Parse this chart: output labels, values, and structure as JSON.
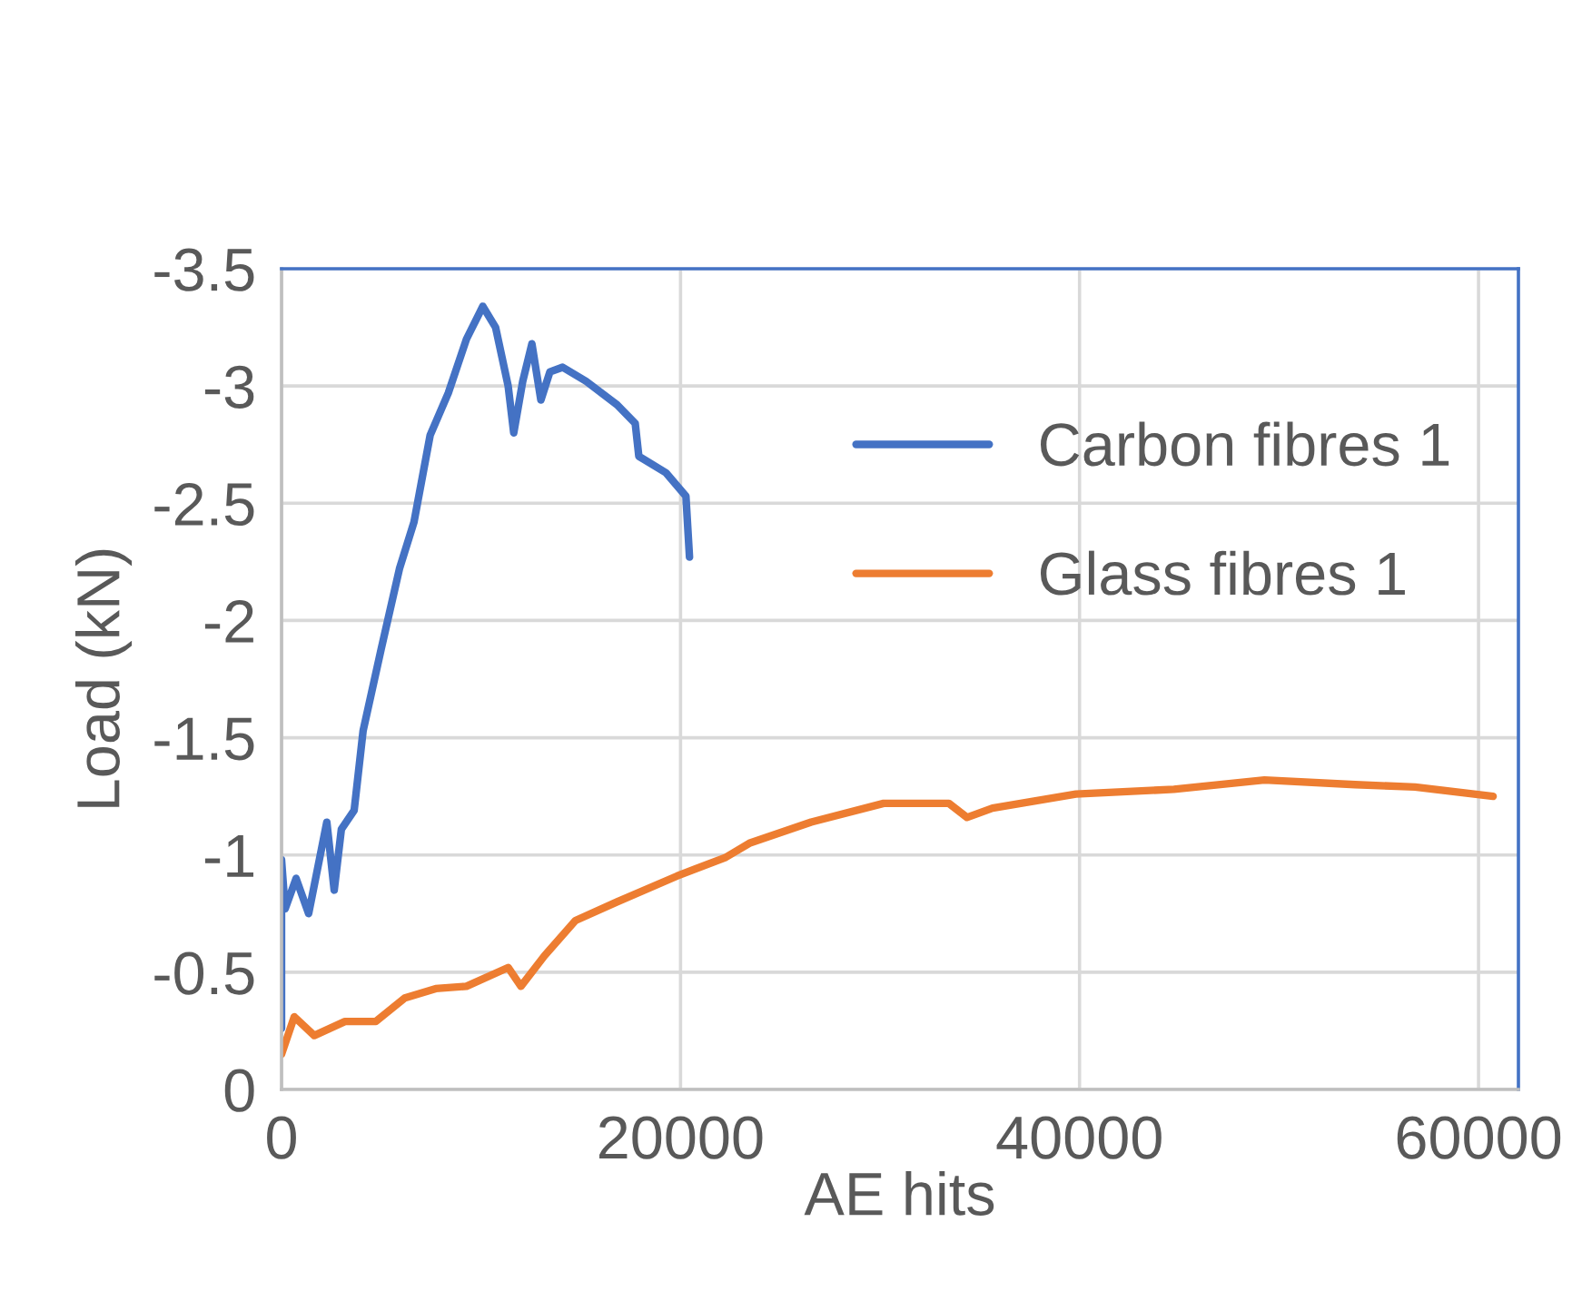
{
  "chart_data": {
    "type": "line",
    "xlabel": "AE hits",
    "ylabel": "Load (kN)",
    "xlim": [
      0,
      62000
    ],
    "xticks": [
      0,
      20000,
      40000,
      60000
    ],
    "ylim": [
      0,
      -3.5
    ],
    "yticks": [
      0,
      -0.5,
      -1,
      -1.5,
      -2,
      -2.5,
      -3,
      -3.5
    ],
    "grid": true,
    "legend": "top right",
    "marker": "none",
    "line_style": "solid",
    "series": [
      {
        "name": "Carbon fibres 1",
        "color": "#4472c4",
        "x": [
          0,
          0,
          180,
          730,
          1360,
          2270,
          2640,
          3000,
          3640,
          4090,
          5000,
          5910,
          6640,
          7450,
          8360,
          9270,
          10090,
          10730,
          11360,
          11640,
          12090,
          12550,
          13000,
          13450,
          14090,
          15270,
          16820,
          17730,
          17910,
          19270,
          20270,
          20450
        ],
        "values": [
          -0.26,
          -0.98,
          -0.77,
          -0.9,
          -0.75,
          -1.14,
          -0.85,
          -1.11,
          -1.19,
          -1.53,
          -1.88,
          -2.22,
          -2.42,
          -2.79,
          -2.97,
          -3.2,
          -3.34,
          -3.25,
          -3.0,
          -2.8,
          -3.02,
          -3.18,
          -2.94,
          -3.06,
          -3.08,
          -3.02,
          -2.92,
          -2.84,
          -2.7,
          -2.63,
          -2.53,
          -2.27
        ]
      },
      {
        "name": "Glass fibres 1",
        "color": "#ed7d31",
        "x": [
          0,
          640,
          1640,
          3180,
          4730,
          6180,
          7730,
          9270,
          11360,
          12000,
          13180,
          14730,
          16820,
          19820,
          22270,
          23450,
          26550,
          30180,
          33450,
          34360,
          35640,
          39820,
          44730,
          49270,
          53820,
          56820,
          60730
        ],
        "values": [
          -0.15,
          -0.31,
          -0.23,
          -0.29,
          -0.29,
          -0.39,
          -0.43,
          -0.44,
          -0.52,
          -0.44,
          -0.57,
          -0.72,
          -0.8,
          -0.91,
          -0.99,
          -1.05,
          -1.14,
          -1.22,
          -1.22,
          -1.16,
          -1.2,
          -1.26,
          -1.28,
          -1.32,
          -1.3,
          -1.29,
          -1.25
        ]
      }
    ]
  }
}
